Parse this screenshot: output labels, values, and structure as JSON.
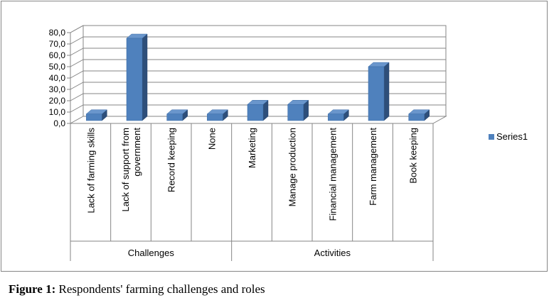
{
  "chart_data": {
    "type": "bar",
    "categories": [
      "Lack of farming skills",
      "Lack of support from government",
      "Record keeping",
      "None",
      "Marketing",
      "Manage production",
      "Financial management",
      "Farm management",
      "Book keeping"
    ],
    "category_label_lines": [
      [
        "Lack of farming skills"
      ],
      [
        "Lack of support from",
        "government"
      ],
      [
        "Record keeping"
      ],
      [
        "None"
      ],
      [
        "Marketing"
      ],
      [
        "Manage production"
      ],
      [
        "Financial management"
      ],
      [
        "Farm management"
      ],
      [
        "Book keeping"
      ]
    ],
    "groups": [
      {
        "label": "Challenges",
        "count": 4
      },
      {
        "label": "Activities",
        "count": 5
      }
    ],
    "series": [
      {
        "name": "Series1",
        "values": [
          8.3,
          75.0,
          8.3,
          8.3,
          16.7,
          16.7,
          8.3,
          50.0,
          8.3
        ]
      }
    ],
    "yticks": [
      "0,0",
      "10,0",
      "20,0",
      "30,0",
      "40,0",
      "50,0",
      "60,0",
      "70,0",
      "80,0"
    ],
    "ylim": [
      0,
      80
    ],
    "grid": true,
    "legend_position": "right",
    "colors": {
      "bar_front": "#4f81bd",
      "bar_side": "#2e4f7a",
      "bar_top": "#6a96cc",
      "axis": "#868686",
      "grid": "#868686"
    }
  },
  "caption": {
    "prefix": "Figure 1:",
    "text": " Respondents' farming challenges and roles"
  }
}
